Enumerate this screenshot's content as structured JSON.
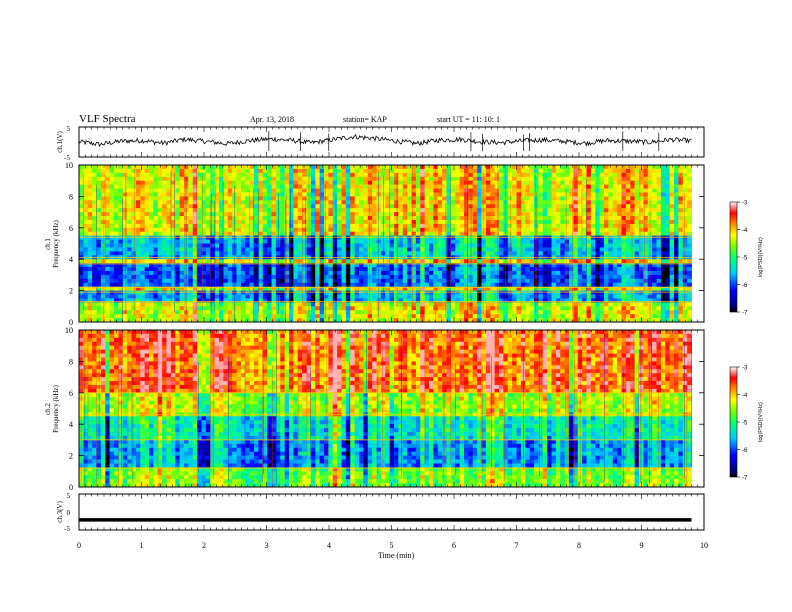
{
  "header": {
    "title": "VLF Spectra",
    "date": "Apr. 13, 2018",
    "station": "station= KAP",
    "start": "start  UT =   11: 10: 1"
  },
  "colors": {
    "spectrogram_scale": [
      "#000000",
      "#00008f",
      "#0000ff",
      "#00c8ff",
      "#00ff7a",
      "#7aff00",
      "#ffff00",
      "#ff8c00",
      "#ff0000",
      "#ffffff"
    ],
    "trace": "#000000"
  },
  "chart_data": [
    {
      "type": "line",
      "panel": "ch1-waveform",
      "ylabel": "ch.1(V)",
      "ylim": [
        -5,
        5
      ],
      "yticks": [
        "5",
        "-5"
      ],
      "x_range_min": [
        0,
        9.8
      ],
      "approx_values": [
        0.1,
        -0.8,
        0.3,
        0.5,
        -0.4,
        0.9,
        0.2,
        -0.6,
        0.4,
        1.0,
        0.6,
        -0.3,
        0.8,
        1.8,
        1.2,
        0.3,
        -0.5,
        0.6,
        0.9,
        0.1,
        -0.2,
        0.4,
        0.7,
        0.2,
        -0.4,
        0.5,
        0.3,
        -0.1,
        0.8,
        0.4
      ]
    },
    {
      "type": "heatmap",
      "panel": "ch1-spectrogram",
      "ylabel": "ch.1\nFrequency (kHz)",
      "ylim": [
        0,
        10
      ],
      "yticks": [
        "0",
        "2",
        "4",
        "6",
        "8",
        "10"
      ],
      "x_range_min": [
        0,
        9.8
      ],
      "bands_khz": [
        {
          "from": 0.0,
          "to": 1.3,
          "level": -4.3
        },
        {
          "from": 1.3,
          "to": 1.9,
          "level": -5.6
        },
        {
          "from": 1.9,
          "to": 2.2,
          "level": -4.2
        },
        {
          "from": 2.2,
          "to": 3.7,
          "level": -5.9
        },
        {
          "from": 3.7,
          "to": 4.1,
          "level": -4.1
        },
        {
          "from": 4.1,
          "to": 5.4,
          "level": -5.5
        },
        {
          "from": 5.4,
          "to": 10.0,
          "level": -4.2
        }
      ]
    },
    {
      "type": "heatmap",
      "panel": "ch2-spectrogram",
      "ylabel": "ch.2\nFrequency (kHz)",
      "ylim": [
        0,
        10
      ],
      "yticks": [
        "0",
        "2",
        "4",
        "6",
        "8",
        "10"
      ],
      "x_range_min": [
        0,
        9.8
      ],
      "bands_khz": [
        {
          "from": 0.0,
          "to": 1.2,
          "level": -4.6
        },
        {
          "from": 1.2,
          "to": 3.0,
          "level": -5.6
        },
        {
          "from": 3.0,
          "to": 4.6,
          "level": -5.2
        },
        {
          "from": 4.6,
          "to": 6.0,
          "level": -4.4
        },
        {
          "from": 6.0,
          "to": 10.0,
          "level": -3.6
        }
      ]
    },
    {
      "type": "line",
      "panel": "ch3-waveform",
      "ylabel": "ch.3(V)",
      "ylim": [
        -5,
        5
      ],
      "yticks": [
        "5",
        "0",
        "-5"
      ],
      "x_range_min": [
        0,
        9.8
      ],
      "approx_values": [
        -2.2,
        -2.2
      ]
    }
  ],
  "xaxis": {
    "label": "Time  (min)",
    "ticks": [
      "0",
      "1",
      "2",
      "3",
      "4",
      "5",
      "6",
      "7",
      "8",
      "9",
      "10"
    ],
    "range": [
      0,
      10
    ]
  },
  "colorbars": [
    {
      "panel": "ch1",
      "label": "log(PSD)(V²/Hz)",
      "ticks": [
        "-3",
        "-4",
        "-5",
        "-6",
        "-7"
      ],
      "range": [
        -7,
        -3
      ]
    },
    {
      "panel": "ch2",
      "label": "log(PSD)(V²/Hz)",
      "ticks": [
        "-3",
        "-4",
        "-5",
        "-6",
        "-7"
      ],
      "range": [
        -7,
        -3
      ]
    }
  ]
}
